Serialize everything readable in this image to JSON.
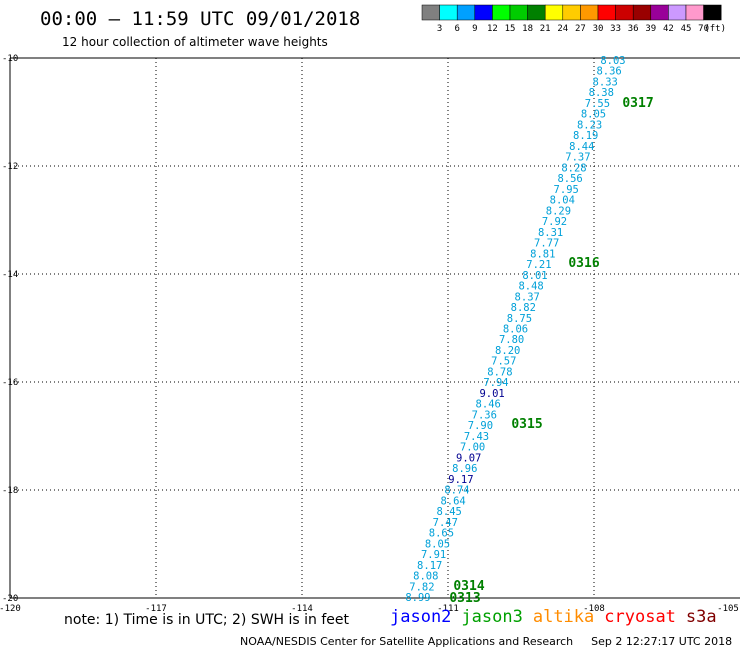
{
  "header": {
    "title": "00:00 – 11:59 UTC 09/01/2018",
    "subtitle": "12 hour collection of altimeter wave heights"
  },
  "legend": {
    "swatches": [
      {
        "color": "#808080"
      },
      {
        "color": "#00ffff"
      },
      {
        "color": "#00a0ff"
      },
      {
        "color": "#0000ff"
      },
      {
        "color": "#00ff00"
      },
      {
        "color": "#00cc00"
      },
      {
        "color": "#008000"
      },
      {
        "color": "#ffff00"
      },
      {
        "color": "#ffcc00"
      },
      {
        "color": "#ff9900"
      },
      {
        "color": "#ff0000"
      },
      {
        "color": "#cc0000"
      },
      {
        "color": "#990000"
      },
      {
        "color": "#990099"
      },
      {
        "color": "#cc99ff"
      },
      {
        "color": "#ff99cc"
      },
      {
        "color": "#000000"
      }
    ],
    "labels": [
      "3",
      "6",
      "9",
      "12",
      "15",
      "18",
      "21",
      "24",
      "27",
      "30",
      "33",
      "36",
      "39",
      "42",
      "45",
      "70",
      "(ft)"
    ]
  },
  "map": {
    "lon_ticks": [
      "-120",
      "-117",
      "-114",
      "-111",
      "-108",
      "-105"
    ],
    "lat_ticks": [
      "-10",
      "-12",
      "-14",
      "-16",
      "-18",
      "-20"
    ],
    "colors": {
      "cyan": "#00a0d8",
      "navy": "#000090",
      "pass_label": "#008000",
      "grid": "#000000"
    }
  },
  "chart_data": {
    "type": "scatter",
    "xlim": [
      -120,
      -105
    ],
    "ylim": [
      -20,
      -10
    ],
    "grid": true,
    "values": [
      {
        "v": "8.03",
        "c": "cyan"
      },
      {
        "v": "8.36",
        "c": "cyan"
      },
      {
        "v": "8.33",
        "c": "cyan"
      },
      {
        "v": "8.38",
        "c": "cyan"
      },
      {
        "v": "7.55",
        "c": "cyan"
      },
      {
        "v": "8.05",
        "c": "cyan"
      },
      {
        "v": "8.23",
        "c": "cyan"
      },
      {
        "v": "8.19",
        "c": "cyan"
      },
      {
        "v": "8.44",
        "c": "cyan"
      },
      {
        "v": "7.37",
        "c": "cyan"
      },
      {
        "v": "8.28",
        "c": "cyan"
      },
      {
        "v": "8.56",
        "c": "cyan"
      },
      {
        "v": "7.95",
        "c": "cyan"
      },
      {
        "v": "8.04",
        "c": "cyan"
      },
      {
        "v": "8.29",
        "c": "cyan"
      },
      {
        "v": "7.92",
        "c": "cyan"
      },
      {
        "v": "8.31",
        "c": "cyan"
      },
      {
        "v": "7.77",
        "c": "cyan"
      },
      {
        "v": "8.81",
        "c": "cyan"
      },
      {
        "v": "7.21",
        "c": "cyan"
      },
      {
        "v": "8.01",
        "c": "cyan"
      },
      {
        "v": "8.48",
        "c": "cyan"
      },
      {
        "v": "8.37",
        "c": "cyan"
      },
      {
        "v": "8.82",
        "c": "cyan"
      },
      {
        "v": "8.75",
        "c": "cyan"
      },
      {
        "v": "8.06",
        "c": "cyan"
      },
      {
        "v": "7.80",
        "c": "cyan"
      },
      {
        "v": "8.20",
        "c": "cyan"
      },
      {
        "v": "7.57",
        "c": "cyan"
      },
      {
        "v": "8.78",
        "c": "cyan"
      },
      {
        "v": "7.94",
        "c": "cyan"
      },
      {
        "v": "9.01",
        "c": "navy"
      },
      {
        "v": "8.46",
        "c": "cyan"
      },
      {
        "v": "7.36",
        "c": "cyan"
      },
      {
        "v": "7.90",
        "c": "cyan"
      },
      {
        "v": "7.43",
        "c": "cyan"
      },
      {
        "v": "7.00",
        "c": "cyan"
      },
      {
        "v": "9.07",
        "c": "navy"
      },
      {
        "v": "8.96",
        "c": "cyan"
      },
      {
        "v": "9.17",
        "c": "navy"
      },
      {
        "v": "8.74",
        "c": "cyan"
      },
      {
        "v": "8.64",
        "c": "cyan"
      },
      {
        "v": "8.45",
        "c": "cyan"
      },
      {
        "v": "7.47",
        "c": "cyan"
      },
      {
        "v": "8.65",
        "c": "cyan"
      },
      {
        "v": "8.05",
        "c": "cyan"
      },
      {
        "v": "7.91",
        "c": "cyan"
      },
      {
        "v": "8.17",
        "c": "cyan"
      },
      {
        "v": "8.08",
        "c": "cyan"
      },
      {
        "v": "7.82",
        "c": "cyan"
      },
      {
        "v": "8.99",
        "c": "cyan"
      }
    ],
    "pass_labels": [
      "0317",
      "0316",
      "0315",
      "0314",
      "0313"
    ]
  },
  "note": "note: 1) Time is in UTC; 2) SWH is in feet",
  "satellites": [
    {
      "name": "jason2",
      "color": "#0000ff"
    },
    {
      "name": "jason3",
      "color": "#00a000"
    },
    {
      "name": "altika",
      "color": "#ff8c00"
    },
    {
      "name": "cryosat",
      "color": "#ff0000"
    },
    {
      "name": "s3a",
      "color": "#800000"
    }
  ],
  "footer": {
    "credit": "NOAA/NESDIS Center for Satellite Applications and Research",
    "timestamp": "Sep  2 12:27:17 UTC 2018"
  }
}
